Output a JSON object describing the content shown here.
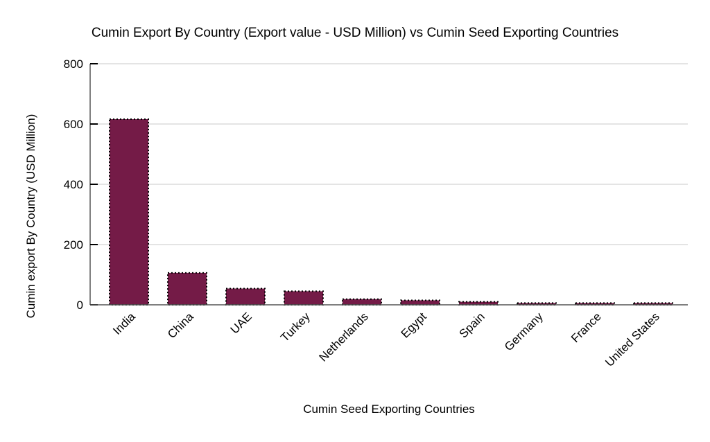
{
  "chart_data": {
    "type": "bar",
    "title": "Cumin Export By Country (Export value - USD Million) vs Cumin Seed Exporting Countries",
    "xlabel": "Cumin Seed Exporting Countries",
    "ylabel": "Cumin export By Country (USD Million)",
    "categories": [
      "India",
      "China",
      "UAE",
      "Turkey",
      "Netherlands",
      "Egypt",
      "Spain",
      "Germany",
      "France",
      "United States"
    ],
    "values": [
      616,
      106,
      54,
      45,
      19,
      15,
      10,
      6,
      6,
      6
    ],
    "ylim": [
      0,
      800
    ],
    "yticks": [
      0,
      200,
      400,
      600,
      800
    ],
    "grid": true,
    "bar_color": "#741b47",
    "legend": "none"
  }
}
